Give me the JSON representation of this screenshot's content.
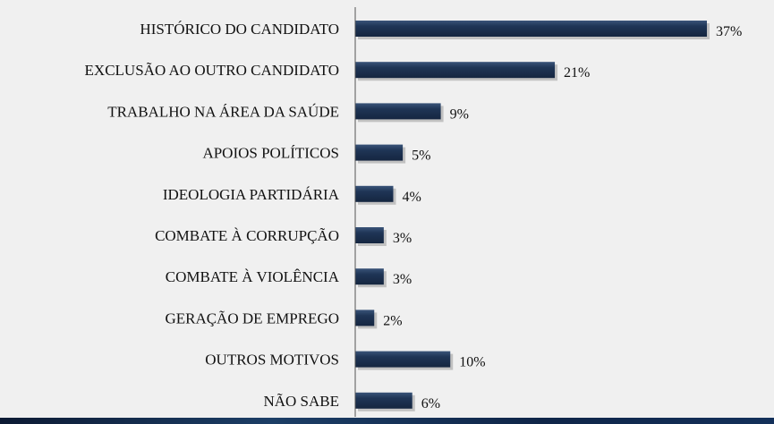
{
  "chart_data": {
    "type": "bar",
    "orientation": "horizontal",
    "categories": [
      "HISTÓRICO DO CANDIDATO",
      "EXCLUSÃO AO OUTRO CANDIDATO",
      "TRABALHO NA ÁREA DA SAÚDE",
      "APOIOS POLÍTICOS",
      "IDEOLOGIA PARTIDÁRIA",
      "COMBATE À CORRUPÇÃO",
      "COMBATE À VIOLÊNCIA",
      "GERAÇÃO DE EMPREGO",
      "OUTROS MOTIVOS",
      "NÃO SABE"
    ],
    "values": [
      37,
      21,
      9,
      5,
      4,
      3,
      3,
      2,
      10,
      6
    ],
    "value_labels": [
      "37%",
      "21%",
      "9%",
      "5%",
      "4%",
      "3%",
      "3%",
      "2%",
      "10%",
      "6%"
    ],
    "xlim": [
      0,
      37
    ],
    "grid": false,
    "bar_color": "#1f3556"
  }
}
